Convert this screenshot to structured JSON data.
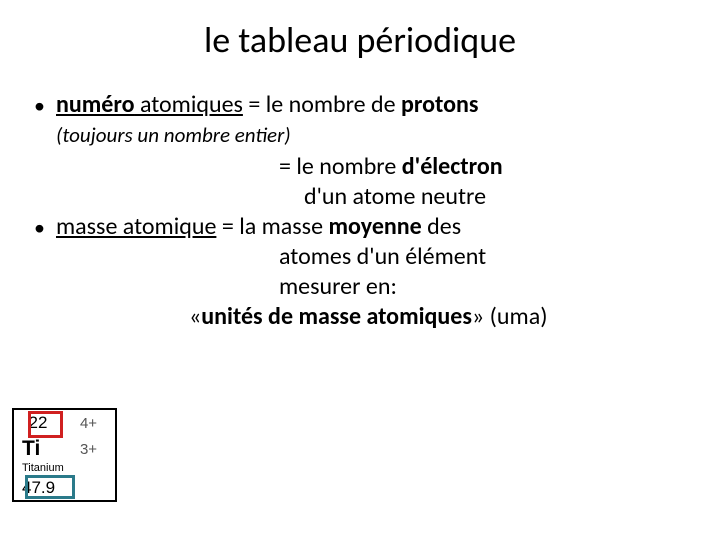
{
  "title": "le tableau périodique",
  "bullet1": {
    "term_bold": "numéro",
    "term_rest": " atomiques",
    "eq": " = le nombre de ",
    "res_bold": "protons"
  },
  "note_italic": "(toujours un nombre entier)",
  "line2a": "= le nombre ",
  "line2a_bold": "d'électron",
  "line2b": "d'un atome neutre",
  "bullet2": {
    "term": "masse atomique",
    "eq": " = la masse ",
    "res_bold": "moyenne",
    "res_rest": " des"
  },
  "line3b": "atomes d'un élément",
  "line3c": "mesurer en:",
  "line4a": "«",
  "line4_bold": "unités de masse atomiques",
  "line4b": "» (uma)",
  "tile": {
    "atomic_number": "22",
    "ox1": "4+",
    "ox2": "3+",
    "symbol": "Ti",
    "name": "Titanium",
    "mass": "47.9"
  },
  "colors": {
    "red_box": "#d02020",
    "teal_box": "#2a7a8a"
  }
}
